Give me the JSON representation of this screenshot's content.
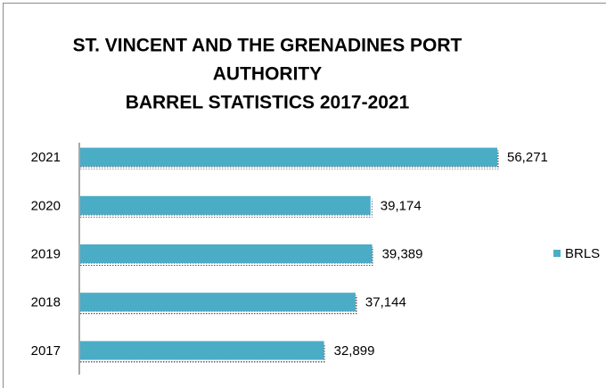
{
  "chart_data": {
    "type": "bar",
    "orientation": "horizontal",
    "title": [
      "ST. VINCENT AND THE GRENADINES PORT",
      "AUTHORITY",
      "BARREL STATISTICS 2017-2021"
    ],
    "categories": [
      "2021",
      "2020",
      "2019",
      "2018",
      "2017"
    ],
    "series": [
      {
        "name": "BRLS",
        "color": "#4bacc6",
        "values": [
          56271,
          39174,
          39389,
          37144,
          32899
        ],
        "value_labels": [
          "56,271",
          "39,174",
          "39,389",
          "37,144",
          "32,899"
        ]
      }
    ],
    "legend": "right"
  }
}
